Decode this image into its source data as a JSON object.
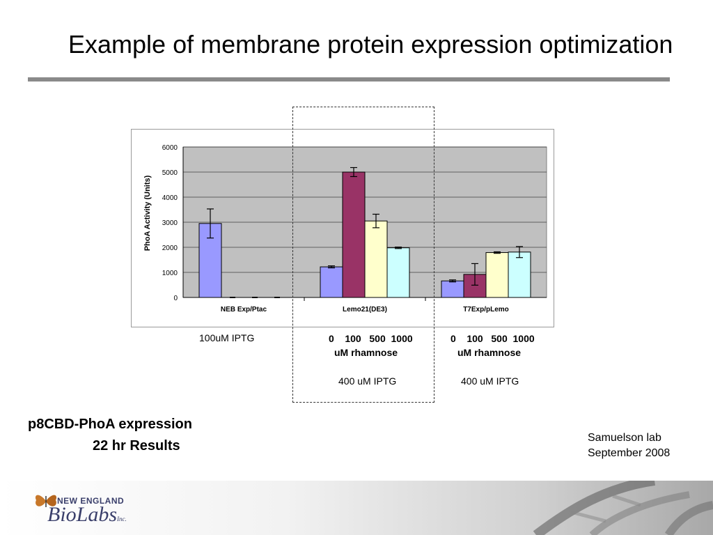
{
  "slide": {
    "title": "Example of membrane protein expression optimization",
    "subtitle_line1": "p8CBD-PhoA expression",
    "subtitle_line2": "22 hr Results",
    "credit_line1": "Samuelson lab",
    "credit_line2": "September 2008",
    "logo_top": "NEW ENGLAND",
    "logo_main": "BioLabs",
    "logo_inc": "Inc."
  },
  "conditions": {
    "group1_iptg": "100uM IPTG",
    "group2_rhamnose_values": "0    100   500  1000",
    "group2_rhamnose_unit": "uM rhamnose",
    "group2_iptg": "400 uM IPTG",
    "group3_rhamnose_values": "0    100   500  1000",
    "group3_rhamnose_unit": "uM rhamnose",
    "group3_iptg": "400 uM IPTG"
  },
  "chart_data": {
    "type": "bar",
    "ylabel": "PhoA Activity (Units)",
    "ylim": [
      0,
      6000
    ],
    "yticks": [
      0,
      1000,
      2000,
      3000,
      4000,
      5000,
      6000
    ],
    "grid": true,
    "plot_background": "#c0c0c0",
    "categories": [
      "NEB Exp/Ptac",
      "Lemo21(DE3)",
      "T7Exp/pLemo"
    ],
    "bar_colors": [
      "#9999ff",
      "#993366",
      "#ffffcc",
      "#ccffff"
    ],
    "bars": [
      [
        {
          "value": 2950,
          "error": 580
        },
        {
          "value": 0,
          "error": 0
        },
        {
          "value": 0,
          "error": 0
        },
        {
          "value": 0,
          "error": 0
        }
      ],
      [
        {
          "value": 1220,
          "error": 40
        },
        {
          "value": 5000,
          "error": 180
        },
        {
          "value": 3050,
          "error": 270
        },
        {
          "value": 1980,
          "error": 30
        }
      ],
      [
        {
          "value": 660,
          "error": 40
        },
        {
          "value": 920,
          "error": 430
        },
        {
          "value": 1790,
          "error": 30
        },
        {
          "value": 1810,
          "error": 220
        }
      ]
    ]
  }
}
